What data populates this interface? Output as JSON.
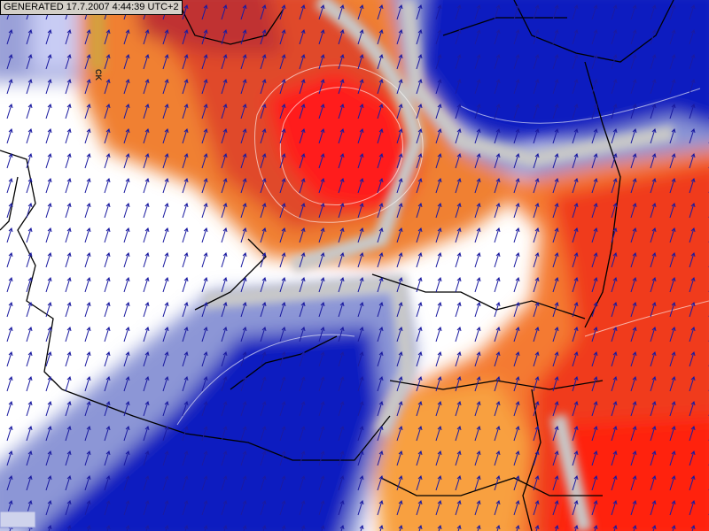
{
  "header": {
    "generated": "GENERATED 17.7.2007 4:44:39 UTC+2",
    "mark": "CK"
  }
}
